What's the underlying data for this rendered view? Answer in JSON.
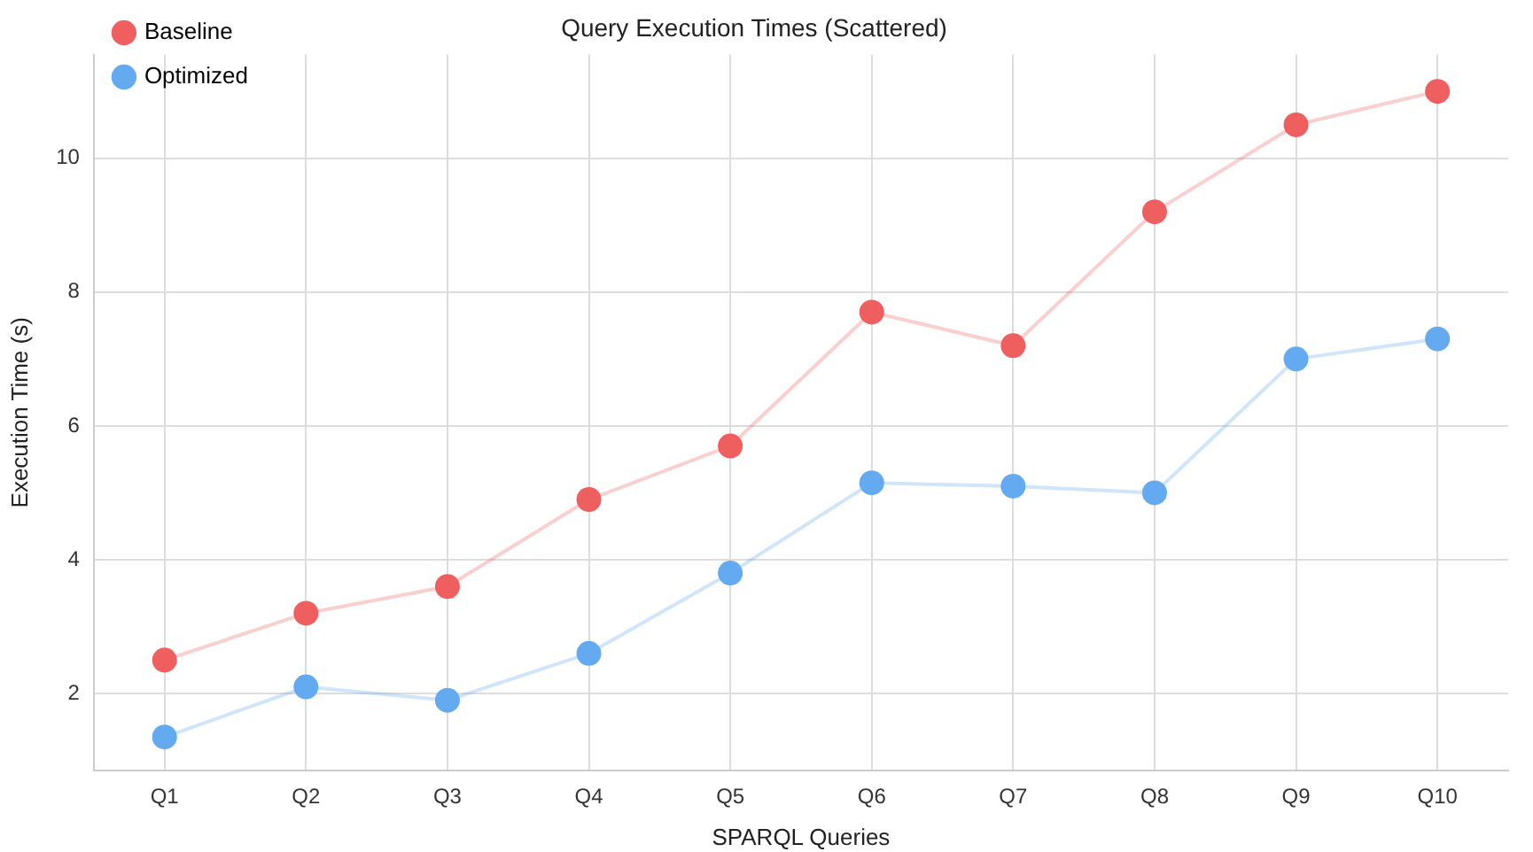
{
  "chart_data": {
    "type": "line",
    "title": "Query Execution Times (Scattered)",
    "xlabel": "SPARQL Queries",
    "ylabel": "Execution Time (s)",
    "categories": [
      "Q1",
      "Q2",
      "Q3",
      "Q4",
      "Q5",
      "Q6",
      "Q7",
      "Q8",
      "Q9",
      "Q10"
    ],
    "series": [
      {
        "name": "Baseline",
        "color": "#f05f5f",
        "values": [
          2.5,
          3.2,
          3.6,
          4.9,
          5.7,
          7.7,
          7.2,
          9.2,
          10.5,
          11.0
        ]
      },
      {
        "name": "Optimized",
        "color": "#64aaf0",
        "values": [
          1.35,
          2.1,
          1.9,
          2.6,
          3.8,
          5.15,
          5.1,
          5.0,
          7.0,
          7.3
        ]
      }
    ],
    "ylim": [
      0.85,
      11.55
    ],
    "yticks": [
      2,
      4,
      6,
      8,
      10
    ],
    "grid": true,
    "legend": "top left",
    "marker": "circle",
    "line_style": "solid"
  }
}
